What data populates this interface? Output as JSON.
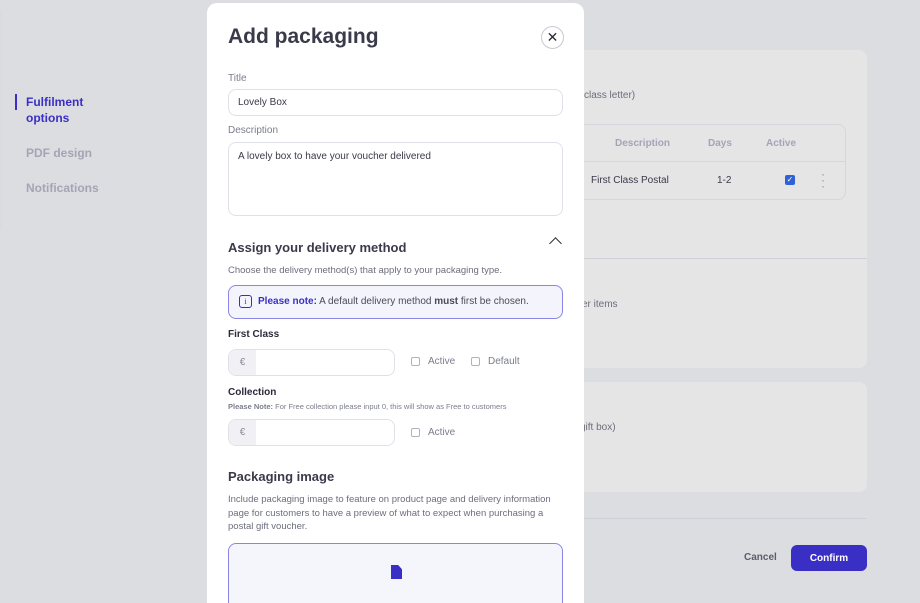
{
  "sidebar": {
    "items": [
      {
        "label": "Fulfilment options",
        "active": true
      },
      {
        "label": "PDF design"
      },
      {
        "label": "Notifications"
      }
    ]
  },
  "background": {
    "card1_text": "class letter)",
    "table": {
      "headers": [
        "Description",
        "Days",
        "Active"
      ],
      "rows": [
        {
          "description": "First Class Postal",
          "days": "1-2",
          "active": true
        }
      ]
    },
    "card1_text2": "er items",
    "card2_text": "gift box)",
    "cancel_label": "Cancel",
    "confirm_label": "Confirm"
  },
  "modal": {
    "title": "Add packaging",
    "close_icon": "close-icon",
    "title_label": "Title",
    "title_value": "Lovely Box",
    "description_label": "Description",
    "description_value": "A lovely box to have your voucher delivered",
    "delivery_heading": "Assign your delivery method",
    "delivery_sub": "Choose the delivery method(s) that apply to your packaging type.",
    "note": {
      "prefix": "Please note:",
      "text1": " A default delivery method ",
      "bold": "must",
      "text2": " first be chosen."
    },
    "first_class": {
      "label": "First Class",
      "currency": "€",
      "value": "",
      "active_label": "Active",
      "default_label": "Default",
      "active": false,
      "default": false
    },
    "collection": {
      "label": "Collection",
      "note_prefix": "Please Note:",
      "note": " For Free collection please input 0, this will show as Free to customers",
      "currency": "€",
      "value": "",
      "active_label": "Active",
      "active": false
    },
    "image_heading": "Packaging image",
    "image_sub": "Include packaging image to feature on product page and delivery information page for customers to have a preview of what to expect when purchasing a postal gift voucher."
  },
  "colors": {
    "accent": "#3a2fc4",
    "background": "#dcdde1",
    "checkbox": "#2f62d6"
  }
}
